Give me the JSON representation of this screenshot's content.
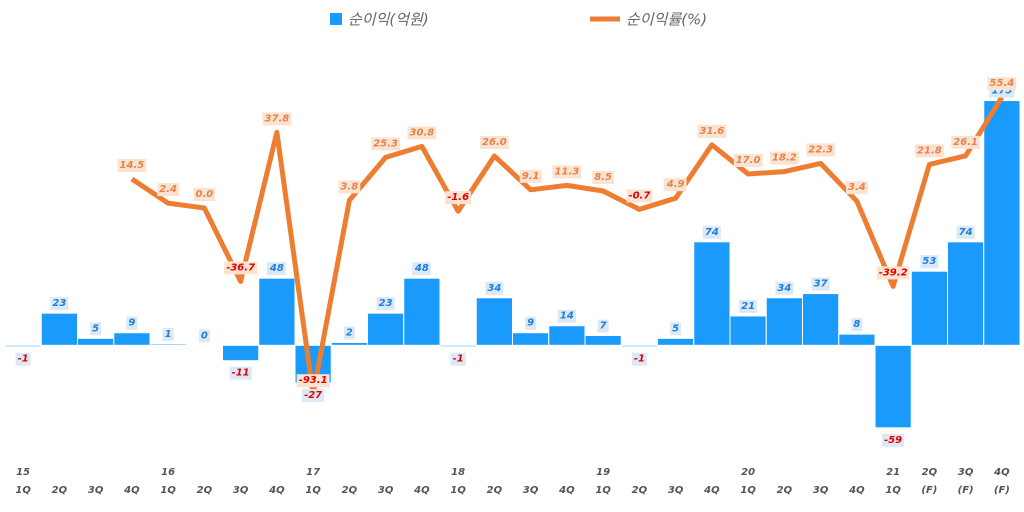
{
  "chart_data": {
    "type": "bar-line",
    "categories": [
      "15\n1Q",
      "2Q",
      "3Q",
      "4Q",
      "16\n1Q",
      "2Q",
      "3Q",
      "4Q",
      "17\n1Q",
      "2Q",
      "3Q",
      "4Q",
      "18\n1Q",
      "2Q",
      "3Q",
      "4Q",
      "19\n1Q",
      "2Q",
      "3Q",
      "4Q",
      "20\n1Q",
      "2Q",
      "3Q",
      "4Q",
      "21\n1Q",
      "2Q\n(F)",
      "3Q\n(F)",
      "4Q\n(F)"
    ],
    "series": [
      {
        "name": "순이익(억원)",
        "type": "bar",
        "color": "#1a9bfc",
        "values": [
          -1,
          23,
          5,
          9,
          1,
          0,
          -11,
          48,
          -27,
          2,
          23,
          48,
          -1,
          34,
          9,
          14,
          7,
          -1,
          5,
          74,
          21,
          34,
          37,
          8,
          -59,
          53,
          74,
          175
        ]
      },
      {
        "name": "순이익률(%)",
        "type": "line",
        "axis": "y2",
        "color": "#ed7d31",
        "values": [
          null,
          null,
          null,
          14.5,
          2.4,
          0.0,
          -36.7,
          37.8,
          -93.1,
          3.8,
          25.3,
          30.8,
          -1.6,
          26.0,
          9.1,
          11.3,
          8.5,
          -0.7,
          4.9,
          31.6,
          17.0,
          18.2,
          22.3,
          3.4,
          -39.2,
          21.8,
          26.1,
          55.4
        ],
        "value_labels": [
          null,
          null,
          null,
          "14.5",
          "2.4",
          "0.0",
          "-36.7",
          "37.8",
          "-93.1",
          "3.8",
          "25.3",
          "30.8",
          "-1.6",
          "26.0",
          "9.1",
          "11.3",
          "8.5",
          "-0.7",
          "4.9",
          "31.6",
          "17.0",
          "18.2",
          "22.3",
          "3.4",
          "-39.2",
          "21.8",
          "26.1",
          "55.4"
        ]
      }
    ],
    "ylim": [
      -82,
      204
    ],
    "y2lim": [
      -126,
      74
    ],
    "legend": "top"
  }
}
